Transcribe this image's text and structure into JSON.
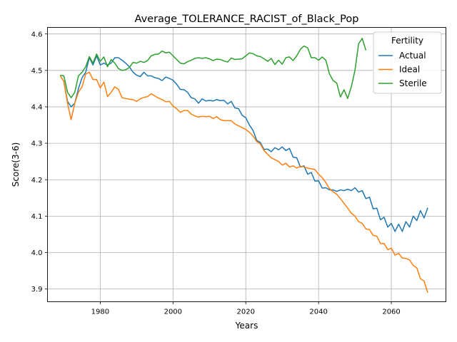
{
  "chart_data": {
    "type": "line",
    "title": "Average_TOLERANCE_RACIST_of_Black_Pop",
    "xlabel": "Years",
    "ylabel": "Score(3-6)",
    "xlim": [
      1965.5,
      2075
    ],
    "ylim": [
      3.865,
      4.618
    ],
    "xticks": [
      1980,
      2000,
      2020,
      2040,
      2060
    ],
    "yticks": [
      3.9,
      4.0,
      4.1,
      4.2,
      4.3,
      4.4,
      4.5,
      4.6
    ],
    "grid": true,
    "legend": {
      "title": "Fertility",
      "position": "top-right"
    },
    "x_start": 1969,
    "series": [
      {
        "name": "Actual",
        "color": "#1f77b4",
        "values": [
          4.485,
          4.47,
          4.415,
          4.4,
          4.41,
          4.45,
          4.48,
          4.495,
          4.535,
          4.515,
          4.54,
          4.515,
          4.52,
          4.515,
          4.52,
          4.535,
          4.535,
          4.528,
          4.52,
          4.51,
          4.495,
          4.487,
          4.483,
          4.495,
          4.485,
          4.485,
          4.48,
          4.478,
          4.472,
          4.482,
          4.478,
          4.473,
          4.462,
          4.448,
          4.447,
          4.44,
          4.425,
          4.422,
          4.41,
          4.422,
          4.416,
          4.418,
          4.416,
          4.42,
          4.417,
          4.418,
          4.408,
          4.415,
          4.397,
          4.395,
          4.377,
          4.37,
          4.35,
          4.335,
          4.308,
          4.302,
          4.283,
          4.284,
          4.277,
          4.288,
          4.282,
          4.29,
          4.28,
          4.286,
          4.262,
          4.26,
          4.235,
          4.238,
          4.215,
          4.22,
          4.196,
          4.197,
          4.177,
          4.178,
          4.172,
          4.172,
          4.168,
          4.172,
          4.17,
          4.174,
          4.17,
          4.178,
          4.166,
          4.17,
          4.148,
          4.152,
          4.12,
          4.122,
          4.09,
          4.097,
          4.07,
          4.08,
          4.058,
          4.078,
          4.058,
          4.085,
          4.07,
          4.1,
          4.088,
          4.115,
          4.095,
          4.123
        ]
      },
      {
        "name": "Ideal",
        "color": "#ff7f0e",
        "values": [
          4.485,
          4.47,
          4.41,
          4.365,
          4.41,
          4.44,
          4.455,
          4.49,
          4.495,
          4.475,
          4.475,
          4.452,
          4.468,
          4.428,
          4.44,
          4.455,
          4.448,
          4.425,
          4.423,
          4.421,
          4.42,
          4.415,
          4.422,
          4.426,
          4.428,
          4.436,
          4.43,
          4.424,
          4.42,
          4.414,
          4.415,
          4.402,
          4.395,
          4.385,
          4.39,
          4.39,
          4.38,
          4.375,
          4.372,
          4.374,
          4.373,
          4.374,
          4.368,
          4.373,
          4.365,
          4.362,
          4.362,
          4.362,
          4.353,
          4.348,
          4.343,
          4.338,
          4.33,
          4.32,
          4.305,
          4.298,
          4.28,
          4.27,
          4.26,
          4.255,
          4.25,
          4.24,
          4.245,
          4.235,
          4.238,
          4.232,
          4.237,
          4.235,
          4.232,
          4.23,
          4.228,
          4.215,
          4.206,
          4.192,
          4.175,
          4.167,
          4.16,
          4.148,
          4.135,
          4.122,
          4.108,
          4.1,
          4.085,
          4.08,
          4.065,
          4.063,
          4.047,
          4.045,
          4.025,
          4.025,
          4.008,
          4.012,
          3.993,
          3.998,
          3.985,
          3.984,
          3.98,
          3.965,
          3.958,
          3.928,
          3.922,
          3.89
        ]
      },
      {
        "name": "Sterile",
        "color": "#2ca02c",
        "values": [
          4.487,
          4.485,
          4.44,
          4.425,
          4.44,
          4.485,
          4.495,
          4.51,
          4.538,
          4.52,
          4.545,
          4.525,
          4.537,
          4.51,
          4.53,
          4.52,
          4.505,
          4.5,
          4.502,
          4.508,
          4.522,
          4.52,
          4.525,
          4.522,
          4.527,
          4.54,
          4.544,
          4.545,
          4.553,
          4.548,
          4.55,
          4.54,
          4.53,
          4.52,
          4.518,
          4.524,
          4.528,
          4.533,
          4.535,
          4.533,
          4.535,
          4.532,
          4.527,
          4.531,
          4.53,
          4.526,
          4.523,
          4.534,
          4.53,
          4.531,
          4.532,
          4.54,
          4.548,
          4.546,
          4.54,
          4.538,
          4.532,
          4.525,
          4.533,
          4.516,
          4.528,
          4.517,
          4.535,
          4.537,
          4.527,
          4.54,
          4.558,
          4.567,
          4.562,
          4.535,
          4.535,
          4.528,
          4.537,
          4.528,
          4.49,
          4.472,
          4.465,
          4.427,
          4.447,
          4.423,
          4.455,
          4.5,
          4.573,
          4.588,
          4.555
        ]
      }
    ]
  }
}
